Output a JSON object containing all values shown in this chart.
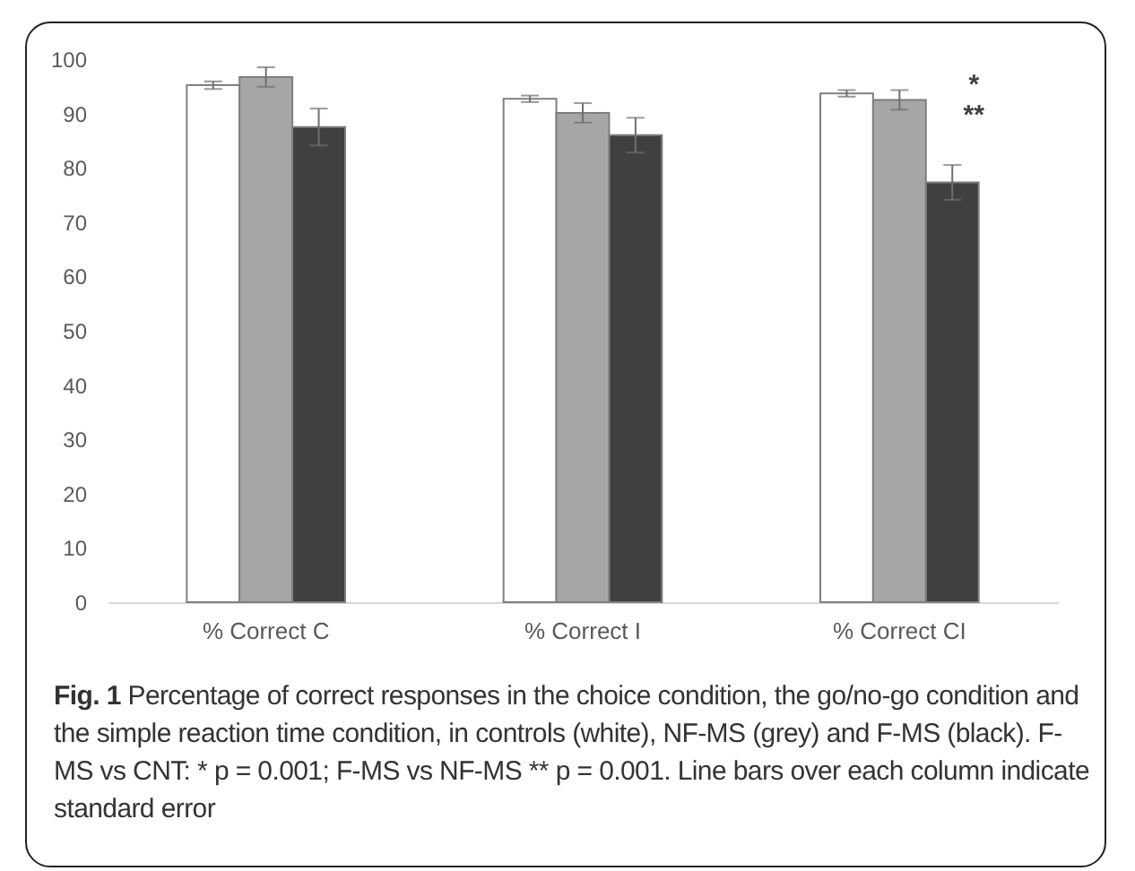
{
  "chart_data": {
    "type": "bar",
    "categories": [
      "% Correct C",
      "% Correct I",
      "% Correct CI"
    ],
    "series": [
      {
        "color": "#ffffff",
        "values": [
          95.2,
          92.7,
          93.7
        ],
        "errors": [
          0.7,
          0.6,
          0.6
        ]
      },
      {
        "color": "#a6a6a6",
        "values": [
          96.7,
          90.1,
          92.5
        ],
        "errors": [
          1.8,
          1.8,
          1.8
        ]
      },
      {
        "color": "#404040",
        "values": [
          87.5,
          86.0,
          77.3
        ],
        "errors": [
          3.4,
          3.2,
          3.2
        ]
      }
    ],
    "ylim": [
      0,
      100
    ],
    "yticks": [
      0,
      10,
      20,
      30,
      40,
      50,
      60,
      70,
      80,
      90,
      100
    ],
    "grid": false,
    "legend": false,
    "annotations": [
      "*",
      "**",
      "Fig. 1 Percentage of correct responses in the choice condition, the go/no-go condition and the simple reaction time condition, in controls (white), NF-MS (grey) and F-MS (black). F-MS vs CNT: * p = 0.001; F-MS vs NF-MS ** p = 0.001. Line bars over each column indicate standard error"
    ]
  }
}
